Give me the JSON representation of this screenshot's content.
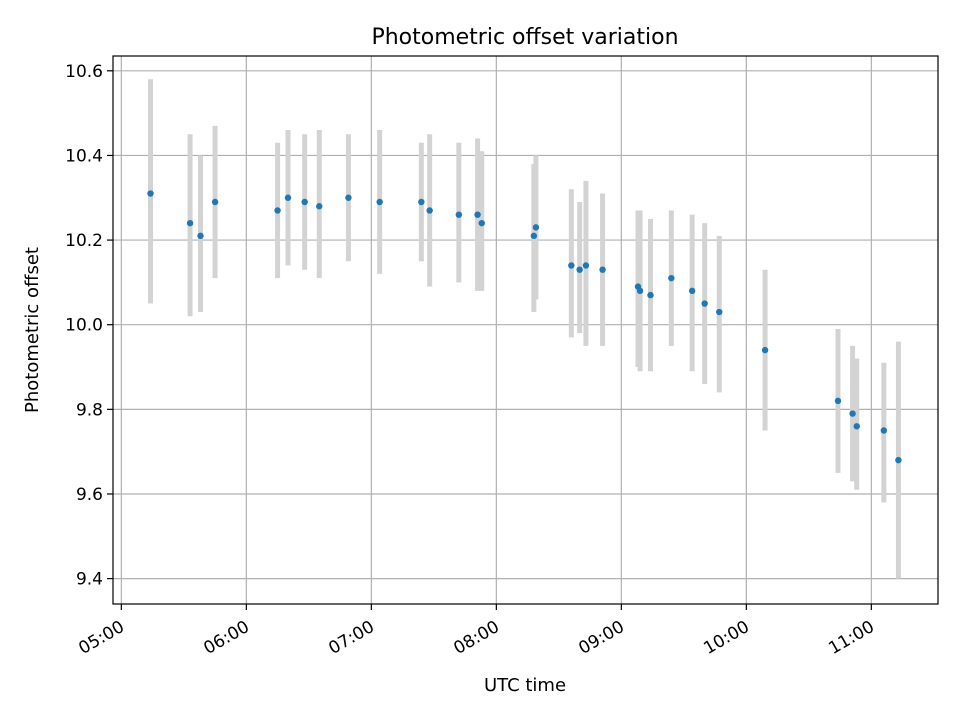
{
  "chart_data": {
    "type": "scatter",
    "title": "Photometric offset variation",
    "xlabel": "UTC time",
    "ylabel": "Photometric offset",
    "x_is_time": true,
    "xlim": [
      "04:56",
      "11:32"
    ],
    "ylim": [
      9.34,
      10.635
    ],
    "xticks": [
      "05:00",
      "06:00",
      "07:00",
      "08:00",
      "09:00",
      "10:00",
      "11:00"
    ],
    "yticks": [
      9.4,
      9.6,
      9.8,
      10.0,
      10.2,
      10.4,
      10.6
    ],
    "ytick_labels": [
      "9.4",
      "9.6",
      "9.8",
      "10.0",
      "10.2",
      "10.4",
      "10.6"
    ],
    "grid": true,
    "marker_color": "#1f77b4",
    "errorbar_color": "#d3d3d3",
    "points": [
      {
        "t": "05:14",
        "y": 10.31,
        "lo": 10.05,
        "hi": 10.58
      },
      {
        "t": "05:33",
        "y": 10.24,
        "lo": 10.02,
        "hi": 10.45
      },
      {
        "t": "05:38",
        "y": 10.21,
        "lo": 10.03,
        "hi": 10.4
      },
      {
        "t": "05:45",
        "y": 10.29,
        "lo": 10.11,
        "hi": 10.47
      },
      {
        "t": "06:15",
        "y": 10.27,
        "lo": 10.11,
        "hi": 10.43
      },
      {
        "t": "06:20",
        "y": 10.3,
        "lo": 10.14,
        "hi": 10.46
      },
      {
        "t": "06:28",
        "y": 10.29,
        "lo": 10.13,
        "hi": 10.45
      },
      {
        "t": "06:35",
        "y": 10.28,
        "lo": 10.11,
        "hi": 10.46
      },
      {
        "t": "06:49",
        "y": 10.3,
        "lo": 10.15,
        "hi": 10.45
      },
      {
        "t": "07:04",
        "y": 10.29,
        "lo": 10.12,
        "hi": 10.46
      },
      {
        "t": "07:24",
        "y": 10.29,
        "lo": 10.15,
        "hi": 10.43
      },
      {
        "t": "07:28",
        "y": 10.27,
        "lo": 10.09,
        "hi": 10.45
      },
      {
        "t": "07:42",
        "y": 10.26,
        "lo": 10.1,
        "hi": 10.43
      },
      {
        "t": "07:51",
        "y": 10.26,
        "lo": 10.08,
        "hi": 10.44
      },
      {
        "t": "07:53",
        "y": 10.24,
        "lo": 10.08,
        "hi": 10.41
      },
      {
        "t": "08:18",
        "y": 10.21,
        "lo": 10.03,
        "hi": 10.38
      },
      {
        "t": "08:19",
        "y": 10.23,
        "lo": 10.06,
        "hi": 10.4
      },
      {
        "t": "08:36",
        "y": 10.14,
        "lo": 9.97,
        "hi": 10.32
      },
      {
        "t": "08:40",
        "y": 10.13,
        "lo": 9.98,
        "hi": 10.29
      },
      {
        "t": "08:43",
        "y": 10.14,
        "lo": 9.95,
        "hi": 10.34
      },
      {
        "t": "08:51",
        "y": 10.13,
        "lo": 9.95,
        "hi": 10.31
      },
      {
        "t": "09:08",
        "y": 10.09,
        "lo": 9.9,
        "hi": 10.27
      },
      {
        "t": "09:09",
        "y": 10.08,
        "lo": 9.89,
        "hi": 10.27
      },
      {
        "t": "09:14",
        "y": 10.07,
        "lo": 9.89,
        "hi": 10.25
      },
      {
        "t": "09:24",
        "y": 10.11,
        "lo": 9.95,
        "hi": 10.27
      },
      {
        "t": "09:34",
        "y": 10.08,
        "lo": 9.89,
        "hi": 10.26
      },
      {
        "t": "09:40",
        "y": 10.05,
        "lo": 9.86,
        "hi": 10.24
      },
      {
        "t": "09:47",
        "y": 10.03,
        "lo": 9.84,
        "hi": 10.21
      },
      {
        "t": "10:09",
        "y": 9.94,
        "lo": 9.75,
        "hi": 10.13
      },
      {
        "t": "10:44",
        "y": 9.82,
        "lo": 9.65,
        "hi": 9.99
      },
      {
        "t": "10:51",
        "y": 9.79,
        "lo": 9.63,
        "hi": 9.95
      },
      {
        "t": "10:53",
        "y": 9.76,
        "lo": 9.61,
        "hi": 9.92
      },
      {
        "t": "11:06",
        "y": 9.75,
        "lo": 9.58,
        "hi": 9.91
      },
      {
        "t": "11:13",
        "y": 9.68,
        "lo": 9.4,
        "hi": 9.96
      }
    ]
  }
}
